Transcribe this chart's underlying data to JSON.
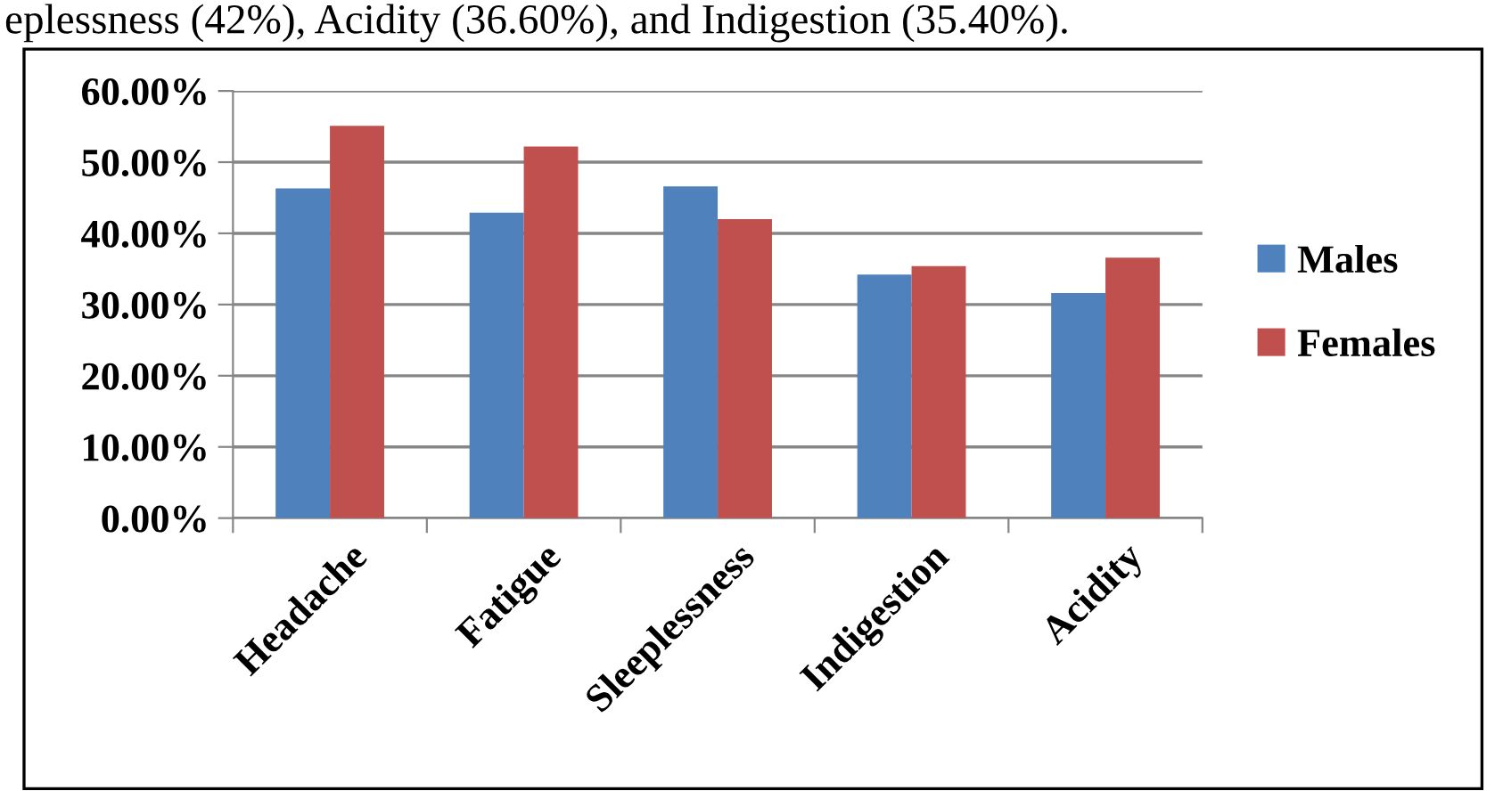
{
  "chart_data": {
    "type": "bar",
    "categories": [
      "Headache",
      "Fatigue",
      "Sleeplessness",
      "Indigestion",
      "Acidity"
    ],
    "series": [
      {
        "name": "Males",
        "color": "#4f81bd",
        "values": [
          46.3,
          42.9,
          46.6,
          34.2,
          31.6
        ]
      },
      {
        "name": "Females",
        "color": "#c0504d",
        "values": [
          55.1,
          52.2,
          42.0,
          35.4,
          36.6
        ]
      }
    ],
    "ylim": [
      0,
      60
    ],
    "yticks": [
      {
        "value": 0,
        "label": "0.00%"
      },
      {
        "value": 10,
        "label": "10.00%"
      },
      {
        "value": 20,
        "label": "20.00%"
      },
      {
        "value": 30,
        "label": "30.00%"
      },
      {
        "value": 40,
        "label": "40.00%"
      },
      {
        "value": 50,
        "label": "50.00%"
      },
      {
        "value": 60,
        "label": "60.00%"
      }
    ],
    "grid": "y",
    "legend": "right",
    "annotations": [
      "eplessness (42%), Acidity (36.60%), and Indigestion (35.40%)."
    ]
  }
}
